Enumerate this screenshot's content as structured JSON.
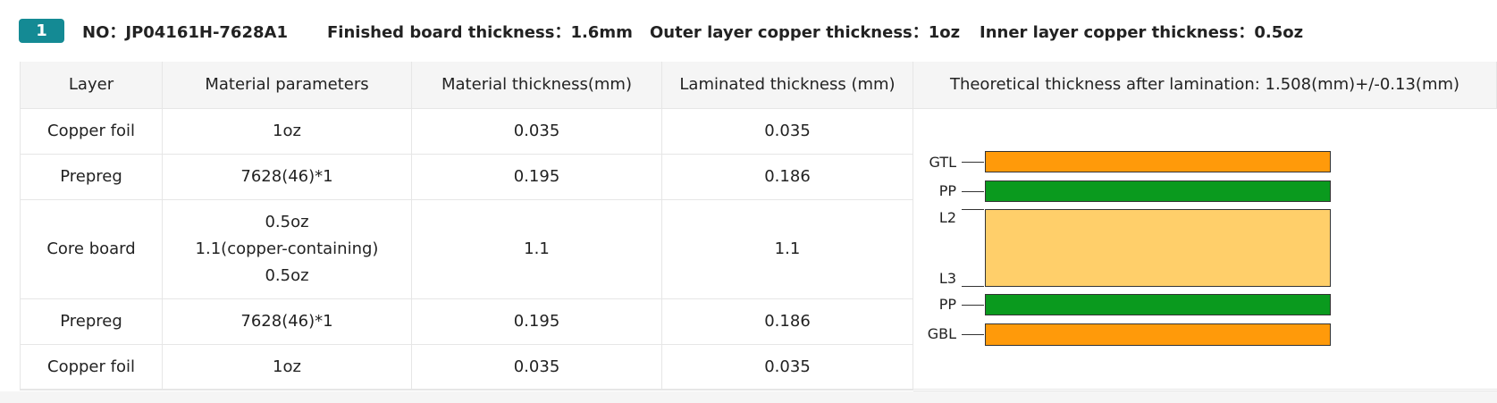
{
  "header": {
    "badge": "1",
    "items": [
      "NO：JP04161H-7628A1",
      "Finished board thickness：1.6mm",
      "Outer layer copper thickness：1oz",
      "Inner layer copper thickness：0.5oz"
    ]
  },
  "table": {
    "columns": [
      "Layer",
      "Material parameters",
      "Material thickness(mm)",
      "Laminated thickness (mm)",
      "Theoretical thickness after lamination: 1.508(mm)+/-0.13(mm)"
    ],
    "rows": [
      [
        "Copper foil",
        [
          "1oz"
        ],
        "0.035",
        "0.035"
      ],
      [
        "Prepreg",
        [
          "7628(46)*1"
        ],
        "0.195",
        "0.186"
      ],
      [
        "Core board",
        [
          "0.5oz",
          "1.1(copper-containing)",
          "0.5oz"
        ],
        "1.1",
        "1.1"
      ],
      [
        "Prepreg",
        [
          "7628(46)*1"
        ],
        "0.195",
        "0.186"
      ],
      [
        "Copper foil",
        [
          "1oz"
        ],
        "0.035",
        "0.035"
      ]
    ]
  },
  "stackup": {
    "labels": [
      "GTL",
      "PP",
      "L2",
      "L3",
      "PP",
      "GBL"
    ]
  }
}
